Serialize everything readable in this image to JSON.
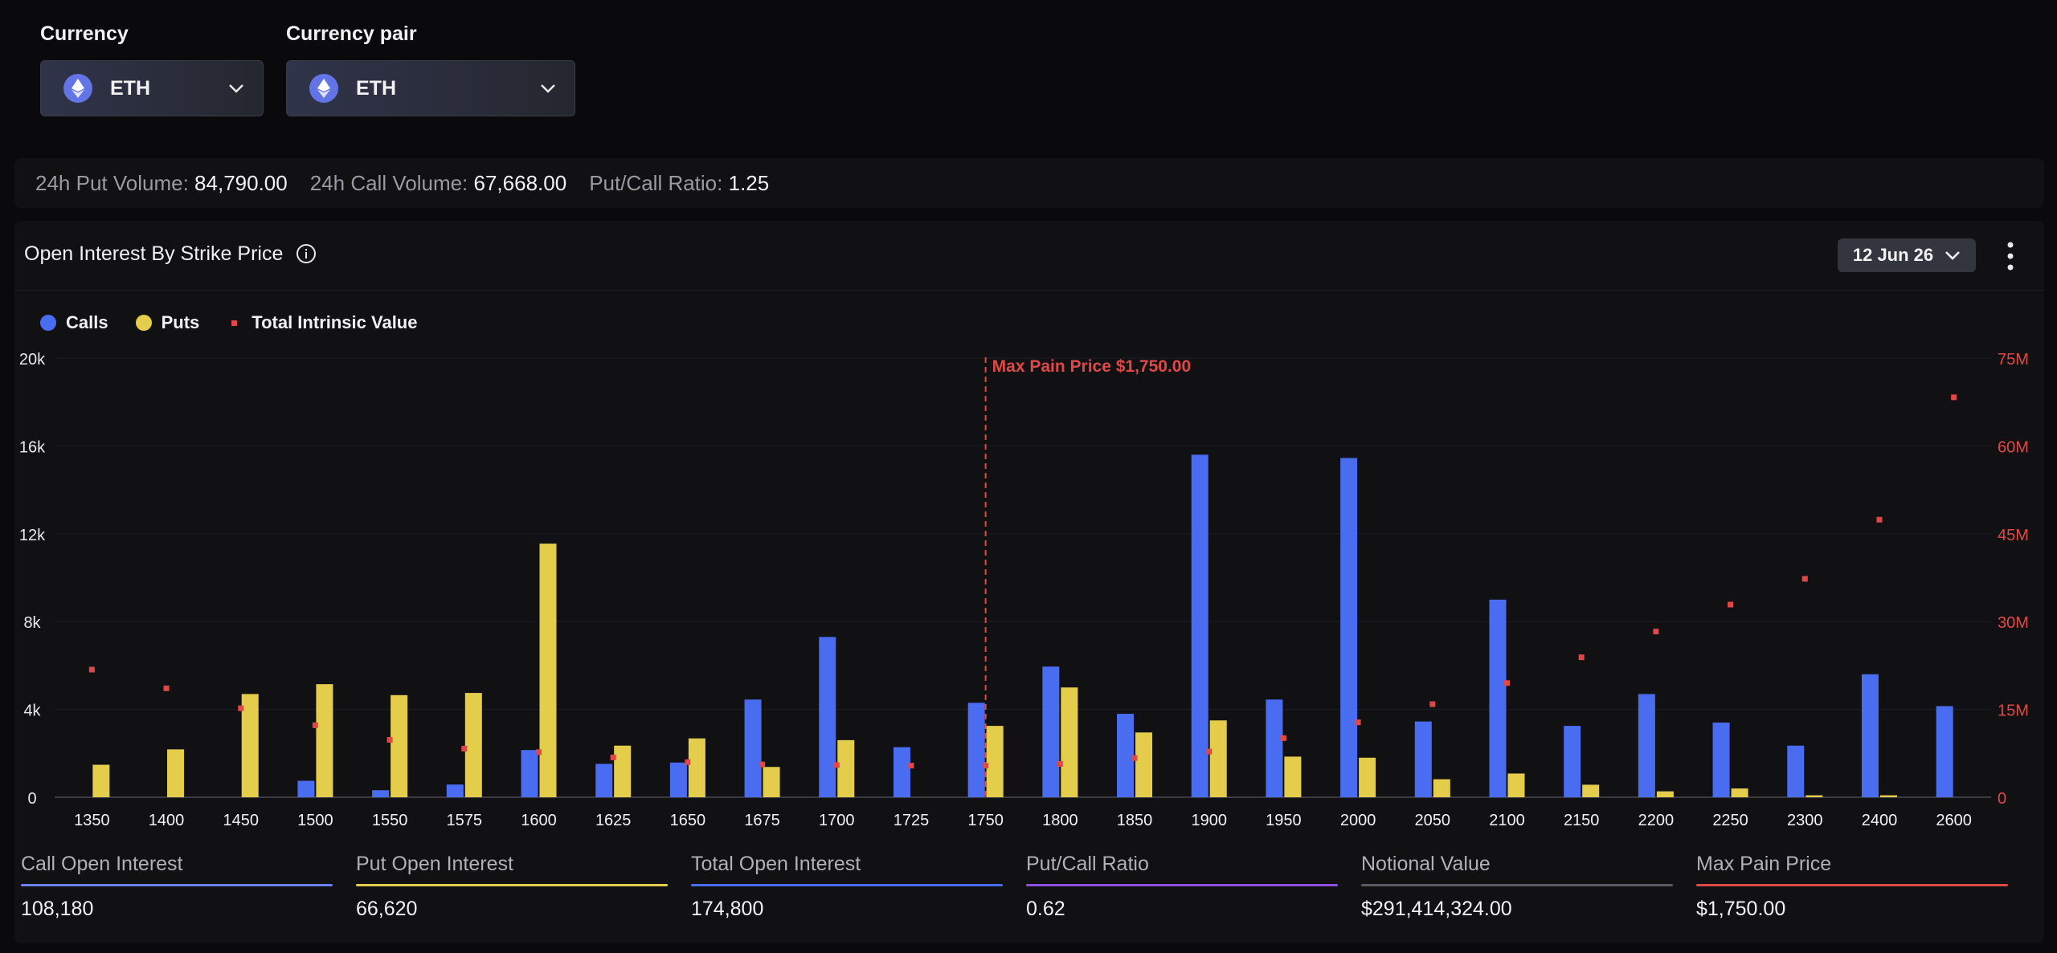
{
  "selectors": {
    "currency": {
      "label": "Currency",
      "value": "ETH"
    },
    "pair": {
      "label": "Currency pair",
      "value": "ETH"
    }
  },
  "stats": [
    {
      "label": "24h Put Volume:",
      "value": "84,790.00"
    },
    {
      "label": "24h Call Volume:",
      "value": "67,668.00"
    },
    {
      "label": "Put/Call Ratio:",
      "value": "1.25"
    }
  ],
  "panel": {
    "title": "Open Interest By Strike Price",
    "expiry": "12 Jun 26"
  },
  "colors": {
    "calls": "#4a6cf0",
    "puts": "#e5cd4c",
    "intrinsic": "#e04848",
    "ratio": "#8f4fe0",
    "notional": "#5a5a62"
  },
  "chart_data": {
    "type": "bar",
    "title": "Open Interest By Strike Price",
    "categories": [
      "1350",
      "1400",
      "1450",
      "1500",
      "1550",
      "1575",
      "1600",
      "1625",
      "1650",
      "1675",
      "1700",
      "1725",
      "1750",
      "1800",
      "1850",
      "1900",
      "1950",
      "2000",
      "2050",
      "2100",
      "2150",
      "2200",
      "2250",
      "2300",
      "2400",
      "2600"
    ],
    "series": [
      {
        "name": "Calls",
        "type": "bar",
        "axis": "left",
        "values": [
          0,
          0,
          0,
          750,
          320,
          580,
          2150,
          1520,
          1580,
          4450,
          7300,
          2280,
          4300,
          5950,
          3800,
          15600,
          4450,
          15450,
          3450,
          9000,
          3250,
          4700,
          3400,
          2350,
          5600,
          4150
        ]
      },
      {
        "name": "Puts",
        "type": "bar",
        "axis": "left",
        "values": [
          1480,
          2180,
          4700,
          5150,
          4650,
          4750,
          11550,
          2350,
          2680,
          1380,
          2600,
          0,
          3250,
          5000,
          2950,
          3500,
          1850,
          1800,
          820,
          1080,
          570,
          270,
          400,
          90,
          90,
          0
        ]
      },
      {
        "name": "Total Intrinsic Value",
        "type": "scatter",
        "axis": "right",
        "values": [
          21.8,
          18.6,
          15.2,
          12.3,
          9.8,
          8.3,
          7.7,
          6.8,
          6.0,
          5.6,
          5.5,
          5.4,
          5.4,
          5.7,
          6.7,
          7.8,
          10.1,
          12.8,
          15.9,
          19.5,
          23.9,
          28.3,
          32.9,
          37.3,
          47.4,
          68.3
        ]
      }
    ],
    "y_left": {
      "min": 0,
      "max": 20000,
      "ticks": [
        "0",
        "4k",
        "8k",
        "12k",
        "16k",
        "20k"
      ]
    },
    "y_right": {
      "min": 0,
      "max": 75,
      "ticks": [
        "0",
        "15M",
        "30M",
        "45M",
        "60M",
        "75M"
      ]
    },
    "annotation": {
      "category": "1750",
      "label": "Max Pain Price $1,750.00"
    },
    "legend_position": "top-left",
    "grid": true
  },
  "metrics": [
    {
      "label": "Call Open Interest",
      "value": "108,180",
      "color": "#6b80f2"
    },
    {
      "label": "Put Open Interest",
      "value": "66,620",
      "color": "#e5cd4c"
    },
    {
      "label": "Total Open Interest",
      "value": "174,800",
      "color": "#4a6cf0"
    },
    {
      "label": "Put/Call Ratio",
      "value": "0.62",
      "color": "#8f4fe0"
    },
    {
      "label": "Notional Value",
      "value": "$291,414,324.00",
      "color": "#5a5a62"
    },
    {
      "label": "Max Pain Price",
      "value": "$1,750.00",
      "color": "#e04848"
    }
  ]
}
